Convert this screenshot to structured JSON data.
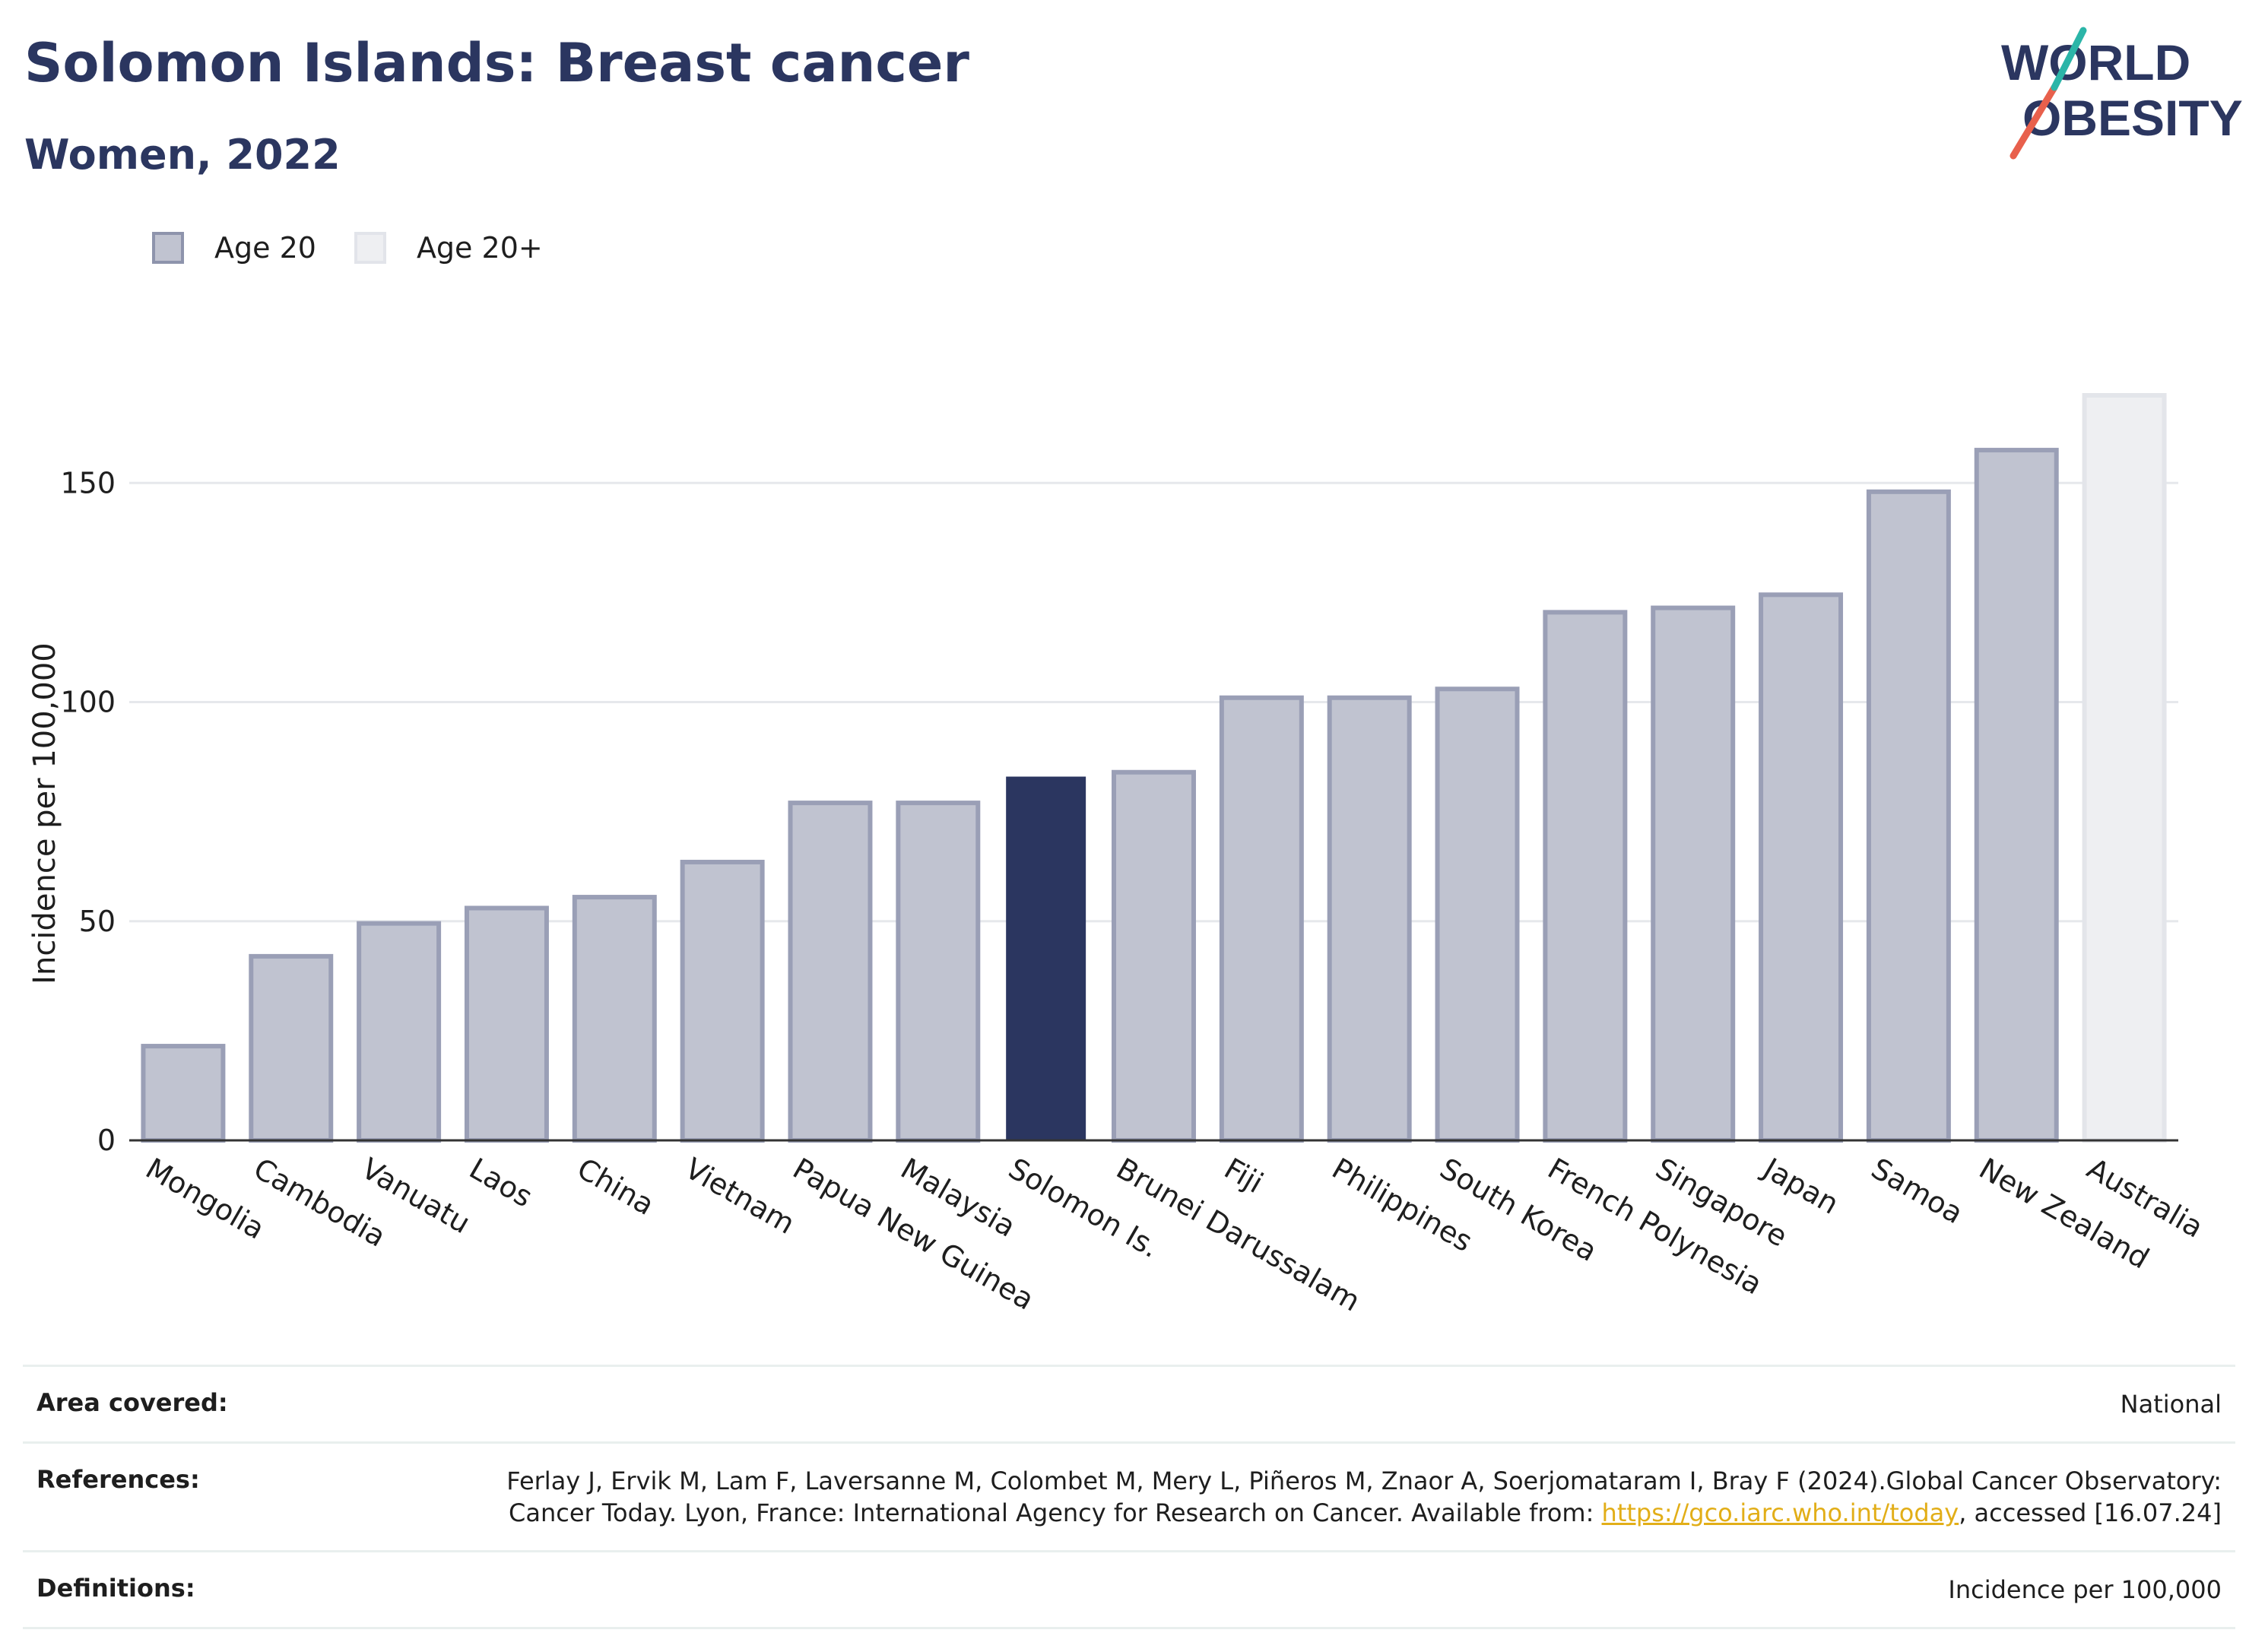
{
  "header": {
    "title": "Solomon Islands: Breast cancer",
    "subtitle": "Women, 2022"
  },
  "logo": {
    "line1": "WORLD",
    "line2": "OBESITY"
  },
  "legend": {
    "items": [
      {
        "label": "Age 20",
        "color": "#c0c3d0"
      },
      {
        "label": "Age 20+",
        "color": "#eeeff2"
      }
    ]
  },
  "chart_data": {
    "type": "bar",
    "ylabel": "Incidence per 100,000",
    "xlabel": "",
    "ylim": [
      0,
      170
    ],
    "yticks": [
      0,
      50,
      100,
      150
    ],
    "grid": true,
    "legend_position": "top-left",
    "categories": [
      "Mongolia",
      "Cambodia",
      "Vanuatu",
      "Laos",
      "China",
      "Vietnam",
      "Papua New Guinea",
      "Malaysia",
      "Solomon Is.",
      "Brunei Darussalam",
      "Fiji",
      "Philippines",
      "South Korea",
      "French Polynesia",
      "Singapore",
      "Japan",
      "Samoa",
      "New Zealand",
      "Australia"
    ],
    "values": [
      21.5,
      42,
      49.5,
      53,
      55.5,
      63.5,
      77,
      77,
      83,
      84,
      101,
      101,
      103,
      120.5,
      121.5,
      124.5,
      148,
      157.5,
      170
    ],
    "series_group": [
      "Age 20",
      "Age 20",
      "Age 20",
      "Age 20",
      "Age 20",
      "Age 20",
      "Age 20",
      "Age 20",
      "Age 20",
      "Age 20",
      "Age 20",
      "Age 20",
      "Age 20",
      "Age 20",
      "Age 20",
      "Age 20",
      "Age 20",
      "Age 20",
      "Age 20+"
    ],
    "highlight": "Solomon Is.",
    "colors": {
      "age20_fill": "#c0c3d0",
      "age20_stroke": "#9a9fb6",
      "age20plus_fill": "#eeeff2",
      "age20plus_stroke": "#e3e5ea",
      "highlight_fill": "#2b3660"
    }
  },
  "footer": {
    "area_label": "Area covered:",
    "area_value": "National",
    "references_label": "References:",
    "references_text": "Ferlay J, Ervik M, Lam F, Laversanne M, Colombet M, Mery L, Piñeros M, Znaor A, Soerjomataram I, Bray F (2024).Global Cancer Observatory: Cancer Today. Lyon, France: International Agency for Research on Cancer. Available from: ",
    "references_link": "https://gco.iarc.who.int/today",
    "references_suffix": ", accessed [16.07.24]",
    "definitions_label": "Definitions:",
    "definitions_value": "Incidence per 100,000"
  }
}
